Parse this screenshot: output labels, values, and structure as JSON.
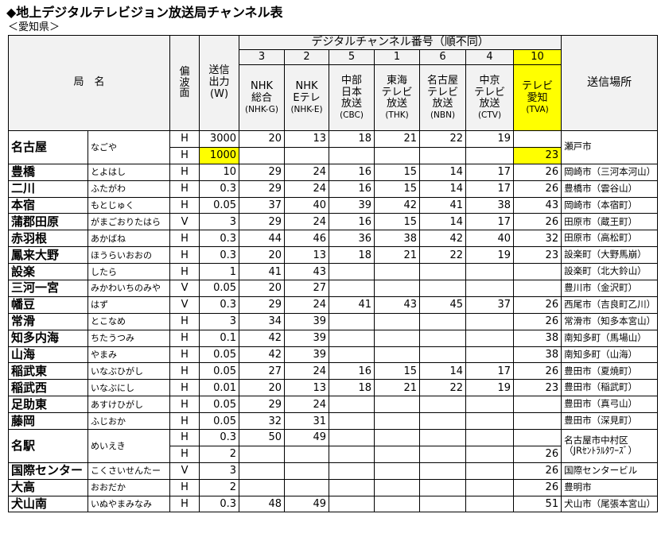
{
  "title": "◆地上デジタルテレビジョン放送局チャンネル表",
  "subtitle": "＜愛知県＞",
  "header": {
    "name": "局　名",
    "polarization": [
      "偏",
      "波",
      "面"
    ],
    "power": [
      "送信",
      "出力",
      "(W)"
    ],
    "channel_group": "デジタルチャンネル番号（順不同）",
    "channels": [
      {
        "number": 3,
        "lines": [
          "NHK",
          "総合",
          "(NHK-G)"
        ]
      },
      {
        "number": 2,
        "lines": [
          "NHK",
          "Eテレ",
          "(NHK-E)"
        ]
      },
      {
        "number": 5,
        "lines": [
          "中部",
          "日本",
          "放送",
          "(CBC)"
        ]
      },
      {
        "number": 1,
        "lines": [
          "東海",
          "テレビ",
          "放送",
          "(THK)"
        ]
      },
      {
        "number": 6,
        "lines": [
          "名古屋",
          "テレビ",
          "放送",
          "(NBN)"
        ]
      },
      {
        "number": 4,
        "lines": [
          "中京",
          "テレビ",
          "放送",
          "(CTV)"
        ]
      },
      {
        "number": 10,
        "lines": [
          "テレビ",
          "愛知",
          "(TVA)"
        ]
      }
    ],
    "location": "送信場所"
  },
  "rows": [
    {
      "name": "名古屋",
      "reading": "なごや",
      "location": "瀬戸市",
      "subrows": [
        {
          "polarization": "H",
          "power": 3000,
          "channels": [
            20,
            13,
            18,
            21,
            22,
            19,
            null
          ]
        },
        {
          "polarization": "H",
          "power": 1000,
          "channels": [
            null,
            null,
            null,
            null,
            null,
            null,
            23
          ]
        }
      ]
    },
    {
      "name": "豊橋",
      "reading": "とよはし",
      "location": "岡崎市（三河本河山）",
      "subrows": [
        {
          "polarization": "H",
          "power": 10,
          "channels": [
            29,
            24,
            16,
            15,
            14,
            17,
            26
          ]
        }
      ]
    },
    {
      "name": "二川",
      "reading": "ふたがわ",
      "location": "豊橋市（雲谷山）",
      "subrows": [
        {
          "polarization": "H",
          "power": 0.3,
          "channels": [
            29,
            24,
            16,
            15,
            14,
            17,
            26
          ]
        }
      ]
    },
    {
      "name": "本宿",
      "reading": "もとじゅく",
      "location": "岡崎市（本宿町）",
      "subrows": [
        {
          "polarization": "H",
          "power": 0.05,
          "channels": [
            37,
            40,
            39,
            42,
            41,
            38,
            43
          ]
        }
      ]
    },
    {
      "name": "蒲郡田原",
      "reading": "がまごおりたはら",
      "location": "田原市（蔵王町）",
      "subrows": [
        {
          "polarization": "V",
          "power": 3,
          "channels": [
            29,
            24,
            16,
            15,
            14,
            17,
            26
          ]
        }
      ]
    },
    {
      "name": "赤羽根",
      "reading": "あかばね",
      "location": "田原市（高松町）",
      "subrows": [
        {
          "polarization": "H",
          "power": 0.3,
          "channels": [
            44,
            46,
            36,
            38,
            42,
            40,
            32
          ]
        }
      ]
    },
    {
      "name": "鳳来大野",
      "reading": "ほうらいおおの",
      "location": "設楽町（大野馬崩）",
      "subrows": [
        {
          "polarization": "H",
          "power": 0.3,
          "channels": [
            20,
            13,
            18,
            21,
            22,
            19,
            23
          ]
        }
      ]
    },
    {
      "name": "設楽",
      "reading": "したら",
      "location": "設楽町（北大鈴山）",
      "subrows": [
        {
          "polarization": "H",
          "power": 1,
          "channels": [
            41,
            43,
            null,
            null,
            null,
            null,
            null
          ]
        }
      ]
    },
    {
      "name": "三河一宮",
      "reading": "みかわいちのみや",
      "location": "豊川市（金沢町）",
      "subrows": [
        {
          "polarization": "V",
          "power": 0.05,
          "channels": [
            20,
            27,
            null,
            null,
            null,
            null,
            null
          ]
        }
      ]
    },
    {
      "name": "幡豆",
      "reading": "はず",
      "location": "西尾市（吉良町乙川）",
      "subrows": [
        {
          "polarization": "V",
          "power": 0.3,
          "channels": [
            29,
            24,
            41,
            43,
            45,
            37,
            26
          ]
        }
      ]
    },
    {
      "name": "常滑",
      "reading": "とこなめ",
      "location": "常滑市（知多本宮山）",
      "subrows": [
        {
          "polarization": "H",
          "power": 3,
          "channels": [
            34,
            39,
            null,
            null,
            null,
            null,
            26
          ]
        }
      ]
    },
    {
      "name": "知多内海",
      "reading": "ちたうつみ",
      "location": "南知多町（馬場山）",
      "subrows": [
        {
          "polarization": "H",
          "power": 0.1,
          "channels": [
            42,
            39,
            null,
            null,
            null,
            null,
            38
          ]
        }
      ]
    },
    {
      "name": "山海",
      "reading": "やまみ",
      "location": "南知多町（山海）",
      "subrows": [
        {
          "polarization": "H",
          "power": 0.05,
          "channels": [
            42,
            39,
            null,
            null,
            null,
            null,
            38
          ]
        }
      ]
    },
    {
      "name": "稲武東",
      "reading": "いなぶひがし",
      "location": "豊田市（夏焼町）",
      "subrows": [
        {
          "polarization": "H",
          "power": 0.05,
          "channels": [
            27,
            24,
            16,
            15,
            14,
            17,
            26
          ]
        }
      ]
    },
    {
      "name": "稲武西",
      "reading": "いなぶにし",
      "location": "豊田市（稲武町）",
      "subrows": [
        {
          "polarization": "H",
          "power": 0.01,
          "channels": [
            20,
            13,
            18,
            21,
            22,
            19,
            23
          ]
        }
      ]
    },
    {
      "name": "足助東",
      "reading": "あすけひがし",
      "location": "豊田市（真弓山）",
      "subrows": [
        {
          "polarization": "H",
          "power": 0.05,
          "channels": [
            29,
            24,
            null,
            null,
            null,
            null,
            null
          ]
        }
      ]
    },
    {
      "name": "藤岡",
      "reading": "ふじおか",
      "location": "豊田市（深見町）",
      "subrows": [
        {
          "polarization": "H",
          "power": 0.05,
          "channels": [
            32,
            31,
            null,
            null,
            null,
            null,
            null
          ]
        }
      ]
    },
    {
      "name": "名駅",
      "reading": "めいえき",
      "location": [
        "名古屋市中村区",
        "（JRｾﾝﾄﾗﾙﾀﾜｰｽﾞ）"
      ],
      "subrows": [
        {
          "polarization": "H",
          "power": 0.3,
          "channels": [
            50,
            49,
            null,
            null,
            null,
            null,
            null
          ]
        },
        {
          "polarization": "H",
          "power": 2,
          "channels": [
            null,
            null,
            null,
            null,
            null,
            null,
            26
          ]
        }
      ]
    },
    {
      "name": "国際センター",
      "reading": "こくさいせんたー",
      "location": "国際センタービル",
      "subrows": [
        {
          "polarization": "V",
          "power": 3,
          "channels": [
            null,
            null,
            null,
            null,
            null,
            null,
            26
          ]
        }
      ]
    },
    {
      "name": "大高",
      "reading": "おおだか",
      "location": "豊明市",
      "subrows": [
        {
          "polarization": "H",
          "power": 2,
          "channels": [
            null,
            null,
            null,
            null,
            null,
            null,
            26
          ]
        }
      ]
    },
    {
      "name": "犬山南",
      "reading": "いぬやまみなみ",
      "location": "犬山市（尾張本宮山）",
      "subrows": [
        {
          "polarization": "H",
          "power": 0.3,
          "channels": [
            48,
            49,
            null,
            null,
            null,
            null,
            51
          ]
        }
      ]
    }
  ]
}
